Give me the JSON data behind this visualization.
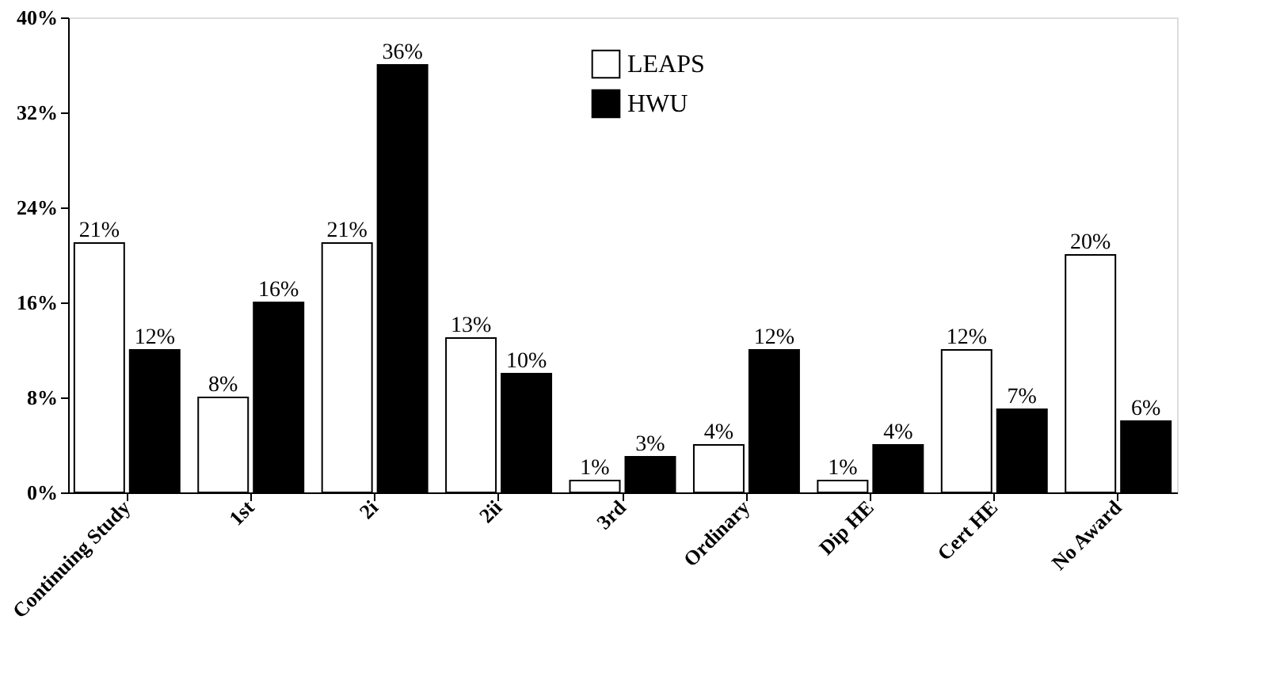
{
  "chart_data": {
    "type": "bar",
    "categories": [
      "Continuing Study",
      "1st",
      "2i",
      "2ii",
      "3rd",
      "Ordinary",
      "Dip HE",
      "Cert HE",
      "No Award"
    ],
    "series": [
      {
        "name": "LEAPS",
        "color": "#ffffff",
        "values": [
          21,
          8,
          21,
          13,
          1,
          4,
          1,
          12,
          20
        ],
        "value_labels": [
          "21%",
          "8%",
          "21%",
          "13%",
          "1%",
          "4%",
          "1%",
          "12%",
          "20%"
        ]
      },
      {
        "name": "HWU",
        "color": "#000000",
        "values": [
          12,
          16,
          36,
          10,
          3,
          12,
          4,
          7,
          6
        ],
        "value_labels": [
          "12%",
          "16%",
          "36%",
          "10%",
          "3%",
          "12%",
          "4%",
          "7%",
          "6%"
        ]
      }
    ],
    "ylim": [
      0,
      40
    ],
    "yticks": [
      {
        "value": 0,
        "label": "0%"
      },
      {
        "value": 8,
        "label": "8%"
      },
      {
        "value": 16,
        "label": "16%"
      },
      {
        "value": 24,
        "label": "24%"
      },
      {
        "value": 32,
        "label": "32%"
      },
      {
        "value": 40,
        "label": "40%"
      }
    ],
    "grid": false,
    "legend": "top"
  }
}
